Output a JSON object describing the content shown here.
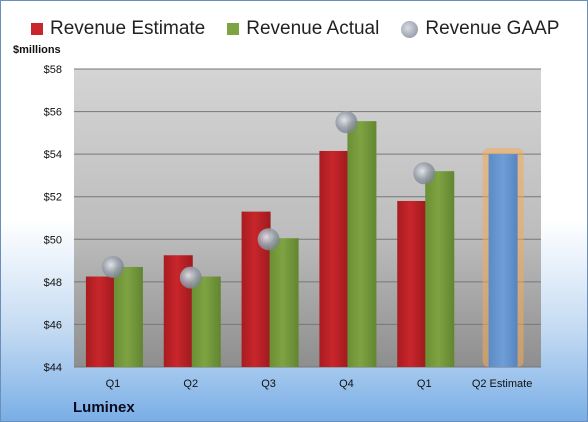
{
  "colors": {
    "estimate": "#c8262b",
    "actual": "#7ea342",
    "gaap": "#9aa1ad",
    "estimate_future": "#6f9ed6",
    "future_glow": "#f4a955"
  },
  "chart_data": {
    "type": "bar",
    "unit_label": "$millions",
    "categories": [
      "Q1",
      "Q2",
      "Q3",
      "Q4",
      "Q1",
      "Q2 Estimate"
    ],
    "ylim": [
      44,
      58
    ],
    "yticks": [
      44,
      46,
      48,
      50,
      52,
      54,
      56,
      58
    ],
    "ytick_labels": [
      "$44",
      "$46",
      "$48",
      "$50",
      "$52",
      "$54",
      "$56",
      "$58"
    ],
    "grid": true,
    "legend_position": "top",
    "series": [
      {
        "name": "Revenue Estimate",
        "kind": "bar",
        "values": [
          48.25,
          49.25,
          51.3,
          54.15,
          51.8,
          54.0
        ]
      },
      {
        "name": "Revenue Actual",
        "kind": "bar",
        "values": [
          48.7,
          48.25,
          50.05,
          55.55,
          53.2,
          null
        ]
      },
      {
        "name": "Revenue GAAP",
        "kind": "marker",
        "values": [
          48.7,
          48.2,
          50.0,
          55.5,
          53.1,
          null
        ]
      }
    ]
  },
  "footer": {
    "company": "Luminex"
  }
}
